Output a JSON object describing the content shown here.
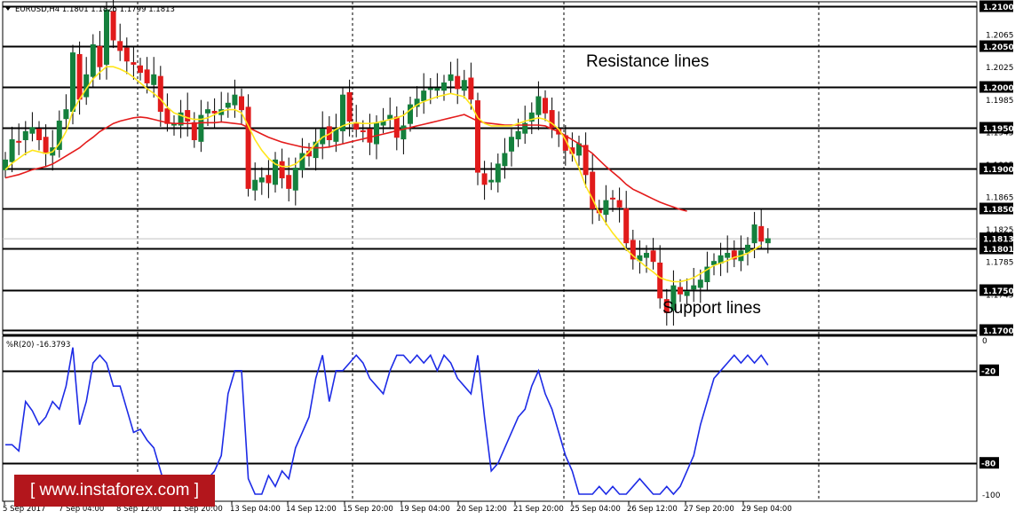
{
  "header": "EURUSD,H4  1.1801 1.1825 1.1799 1.1813",
  "indicator_header": "%R(20) -16.3793",
  "annotations": {
    "resistance": "Resistance lines",
    "support": "Support lines"
  },
  "watermark": "[  www.instaforex.com  ]",
  "colors": {
    "bull": "#15803d",
    "bear": "#e11b1b",
    "ma_fast": "#ffe61c",
    "ma_slow": "#e41b1b",
    "wpr": "#1d2be6",
    "hline": "#000000",
    "grid": "#000000",
    "label_bg": "#000000",
    "label_fg": "#ffffff"
  },
  "chart_data": [
    {
      "type": "candlestick",
      "symbol": "EURUSD",
      "timeframe": "H4",
      "ylim": [
        1.1695,
        1.2105
      ],
      "y_ticks": [
        "1.2065",
        "1.2025",
        "1.1985",
        "1.1945",
        "1.1905",
        "1.1865",
        "1.1825",
        "1.1785",
        "1.1745"
      ],
      "current_price": "1.1813",
      "x_ticks": [
        "5 Sep 2017",
        "7 Sep 04:00",
        "8 Sep 12:00",
        "11 Sep 20:00",
        "13 Sep 04:00",
        "14 Sep 12:00",
        "15 Sep 20:00",
        "19 Sep 04:00",
        "20 Sep 12:00",
        "21 Sep 20:00",
        "25 Sep 04:00",
        "26 Sep 12:00",
        "27 Sep 20:00",
        "29 Sep 04:00"
      ],
      "horizontal_levels": [
        "1.2100",
        "1.2050",
        "1.2000",
        "1.1950",
        "1.1900",
        "1.1850",
        "1.1801",
        "1.1750",
        "1.1700"
      ],
      "close": [
        1.191,
        1.1935,
        1.1932,
        1.1945,
        1.195,
        1.1935,
        1.1918,
        1.1925,
        1.1958,
        1.1972,
        1.2042,
        1.1985,
        1.2015,
        1.2052,
        1.2025,
        1.2095,
        1.2058,
        1.2045,
        1.2032,
        1.2028,
        1.2018,
        1.2005,
        1.2015,
        1.197,
        1.1955,
        1.1955,
        1.1968,
        1.1958,
        1.1935,
        1.1965,
        1.1972,
        1.1968,
        1.1972,
        1.198,
        1.199,
        1.1972,
        1.1875,
        1.1885,
        1.1888,
        1.1882,
        1.191,
        1.1888,
        1.1875,
        1.19,
        1.1918,
        1.1915,
        1.1932,
        1.1948,
        1.1935,
        1.1948,
        1.199,
        1.1958,
        1.1948,
        1.1945,
        1.1932,
        1.1955,
        1.1958,
        1.1965,
        1.1938,
        1.1952,
        1.1978,
        1.1985,
        1.1995,
        1.1998,
        1.1998,
        1.2005,
        1.2015,
        1.1998,
        1.2008,
        1.1985,
        1.1895,
        1.188,
        1.1885,
        1.1905,
        1.1918,
        1.1938,
        1.1945,
        1.1955,
        1.1968,
        1.1988,
        1.1968,
        1.195,
        1.1942,
        1.1922,
        1.1918,
        1.193,
        1.1892,
        1.185,
        1.1845,
        1.186,
        1.1862,
        1.1852,
        1.1808,
        1.1788,
        1.1792,
        1.1795,
        1.1785,
        1.174,
        1.1722,
        1.1755,
        1.1745,
        1.1748,
        1.1755,
        1.1762,
        1.1778,
        1.1785,
        1.1792,
        1.1795,
        1.1788,
        1.1798,
        1.1805,
        1.183,
        1.181,
        1.1813
      ],
      "ma_fast": {
        "values": [
          1.1898,
          1.1906,
          1.1912,
          1.1918,
          1.1922,
          1.192,
          1.1918,
          1.192,
          1.193,
          1.1945,
          1.197,
          1.1985,
          1.1998,
          1.201,
          1.2018,
          1.2025,
          1.2025,
          1.2022,
          1.2018,
          1.2012,
          1.2005,
          1.1998,
          1.1992,
          1.1985,
          1.1975,
          1.1968,
          1.1965,
          1.1962,
          1.196,
          1.196,
          1.1962,
          1.1966,
          1.197,
          1.1972,
          1.1972,
          1.1968,
          1.1952,
          1.1935,
          1.1922,
          1.1912,
          1.1905,
          1.1902,
          1.1902,
          1.1905,
          1.1912,
          1.192,
          1.193,
          1.1938,
          1.1942,
          1.1948,
          1.1952,
          1.1955,
          1.1956,
          1.1955,
          1.1955,
          1.1956,
          1.1958,
          1.196,
          1.1962,
          1.1965,
          1.1972,
          1.1978,
          1.1982,
          1.1985,
          1.1988,
          1.199,
          1.1992,
          1.199,
          1.1988,
          1.1978,
          1.1962,
          1.1955,
          1.1952,
          1.1952,
          1.1952,
          1.1952,
          1.1955,
          1.1958,
          1.196,
          1.1962,
          1.196,
          1.1955,
          1.1948,
          1.1935,
          1.1918,
          1.19,
          1.1878,
          1.1862,
          1.1845,
          1.1832,
          1.182,
          1.181,
          1.18,
          1.1792,
          1.1785,
          1.1778,
          1.1772,
          1.1765,
          1.1762,
          1.176,
          1.176,
          1.1762,
          1.1765,
          1.177,
          1.1775,
          1.178,
          1.1783,
          1.1786,
          1.179,
          1.1792,
          1.1795,
          1.18,
          1.1805
        ]
      },
      "ma_slow": {
        "values": [
          1.1888,
          1.189,
          1.1892,
          1.1895,
          1.1898,
          1.19,
          1.1902,
          1.1905,
          1.191,
          1.1915,
          1.192,
          1.1925,
          1.1932,
          1.1938,
          1.1945,
          1.195,
          1.1955,
          1.1958,
          1.196,
          1.1962,
          1.1963,
          1.1962,
          1.196,
          1.1958,
          1.1956,
          1.1955,
          1.1955,
          1.1955,
          1.1955,
          1.1956,
          1.1956,
          1.1956,
          1.1957,
          1.1956,
          1.1955,
          1.1954,
          1.195,
          1.1946,
          1.1942,
          1.1938,
          1.1935,
          1.1932,
          1.193,
          1.1928,
          1.1926,
          1.1925,
          1.1925,
          1.1925,
          1.1926,
          1.1928,
          1.193,
          1.1932,
          1.1934,
          1.1936,
          1.1938,
          1.194,
          1.1942,
          1.1944,
          1.1946,
          1.1948,
          1.195,
          1.1952,
          1.1954,
          1.1956,
          1.1958,
          1.196,
          1.1962,
          1.1964,
          1.1966,
          1.1962,
          1.1958,
          1.1956,
          1.1955,
          1.1954,
          1.1953,
          1.1953,
          1.1953,
          1.1953,
          1.1953,
          1.1953,
          1.1952,
          1.1948,
          1.1945,
          1.194,
          1.1935,
          1.193,
          1.1924,
          1.1918,
          1.191,
          1.1902,
          1.1895,
          1.1888,
          1.188,
          1.1874,
          1.187,
          1.1866,
          1.1862,
          1.1858,
          1.1855,
          1.1852,
          1.1849,
          1.1847
        ]
      }
    },
    {
      "type": "line",
      "name": "%R(20)",
      "ylim": [
        -100,
        0
      ],
      "y_ticks": [
        "0",
        "-20",
        "-80",
        "-100"
      ],
      "levels": [
        -20,
        -80
      ],
      "values": [
        -68,
        -68,
        -72,
        -40,
        -46,
        -55,
        -50,
        -40,
        -45,
        -30,
        -5,
        -55,
        -40,
        -15,
        -10,
        -15,
        -30,
        -30,
        -45,
        -60,
        -58,
        -65,
        -70,
        -85,
        -100,
        -95,
        -90,
        -90,
        -95,
        -90,
        -90,
        -85,
        -75,
        -35,
        -20,
        -20,
        -90,
        -100,
        -100,
        -88,
        -95,
        -85,
        -90,
        -70,
        -60,
        -50,
        -25,
        -10,
        -40,
        -20,
        -20,
        -15,
        -10,
        -15,
        -25,
        -30,
        -35,
        -20,
        -10,
        -10,
        -15,
        -10,
        -15,
        -10,
        -20,
        -10,
        -15,
        -25,
        -30,
        -35,
        -10,
        -50,
        -85,
        -80,
        -70,
        -60,
        -50,
        -45,
        -30,
        -20,
        -35,
        -45,
        -60,
        -75,
        -85,
        -100,
        -100,
        -100,
        -95,
        -100,
        -95,
        -100,
        -100,
        -95,
        -90,
        -95,
        -100,
        -100,
        -95,
        -100,
        -95,
        -85,
        -75,
        -55,
        -40,
        -25,
        -20,
        -15,
        -10,
        -15,
        -10,
        -15,
        -10,
        -16.3793
      ]
    }
  ]
}
